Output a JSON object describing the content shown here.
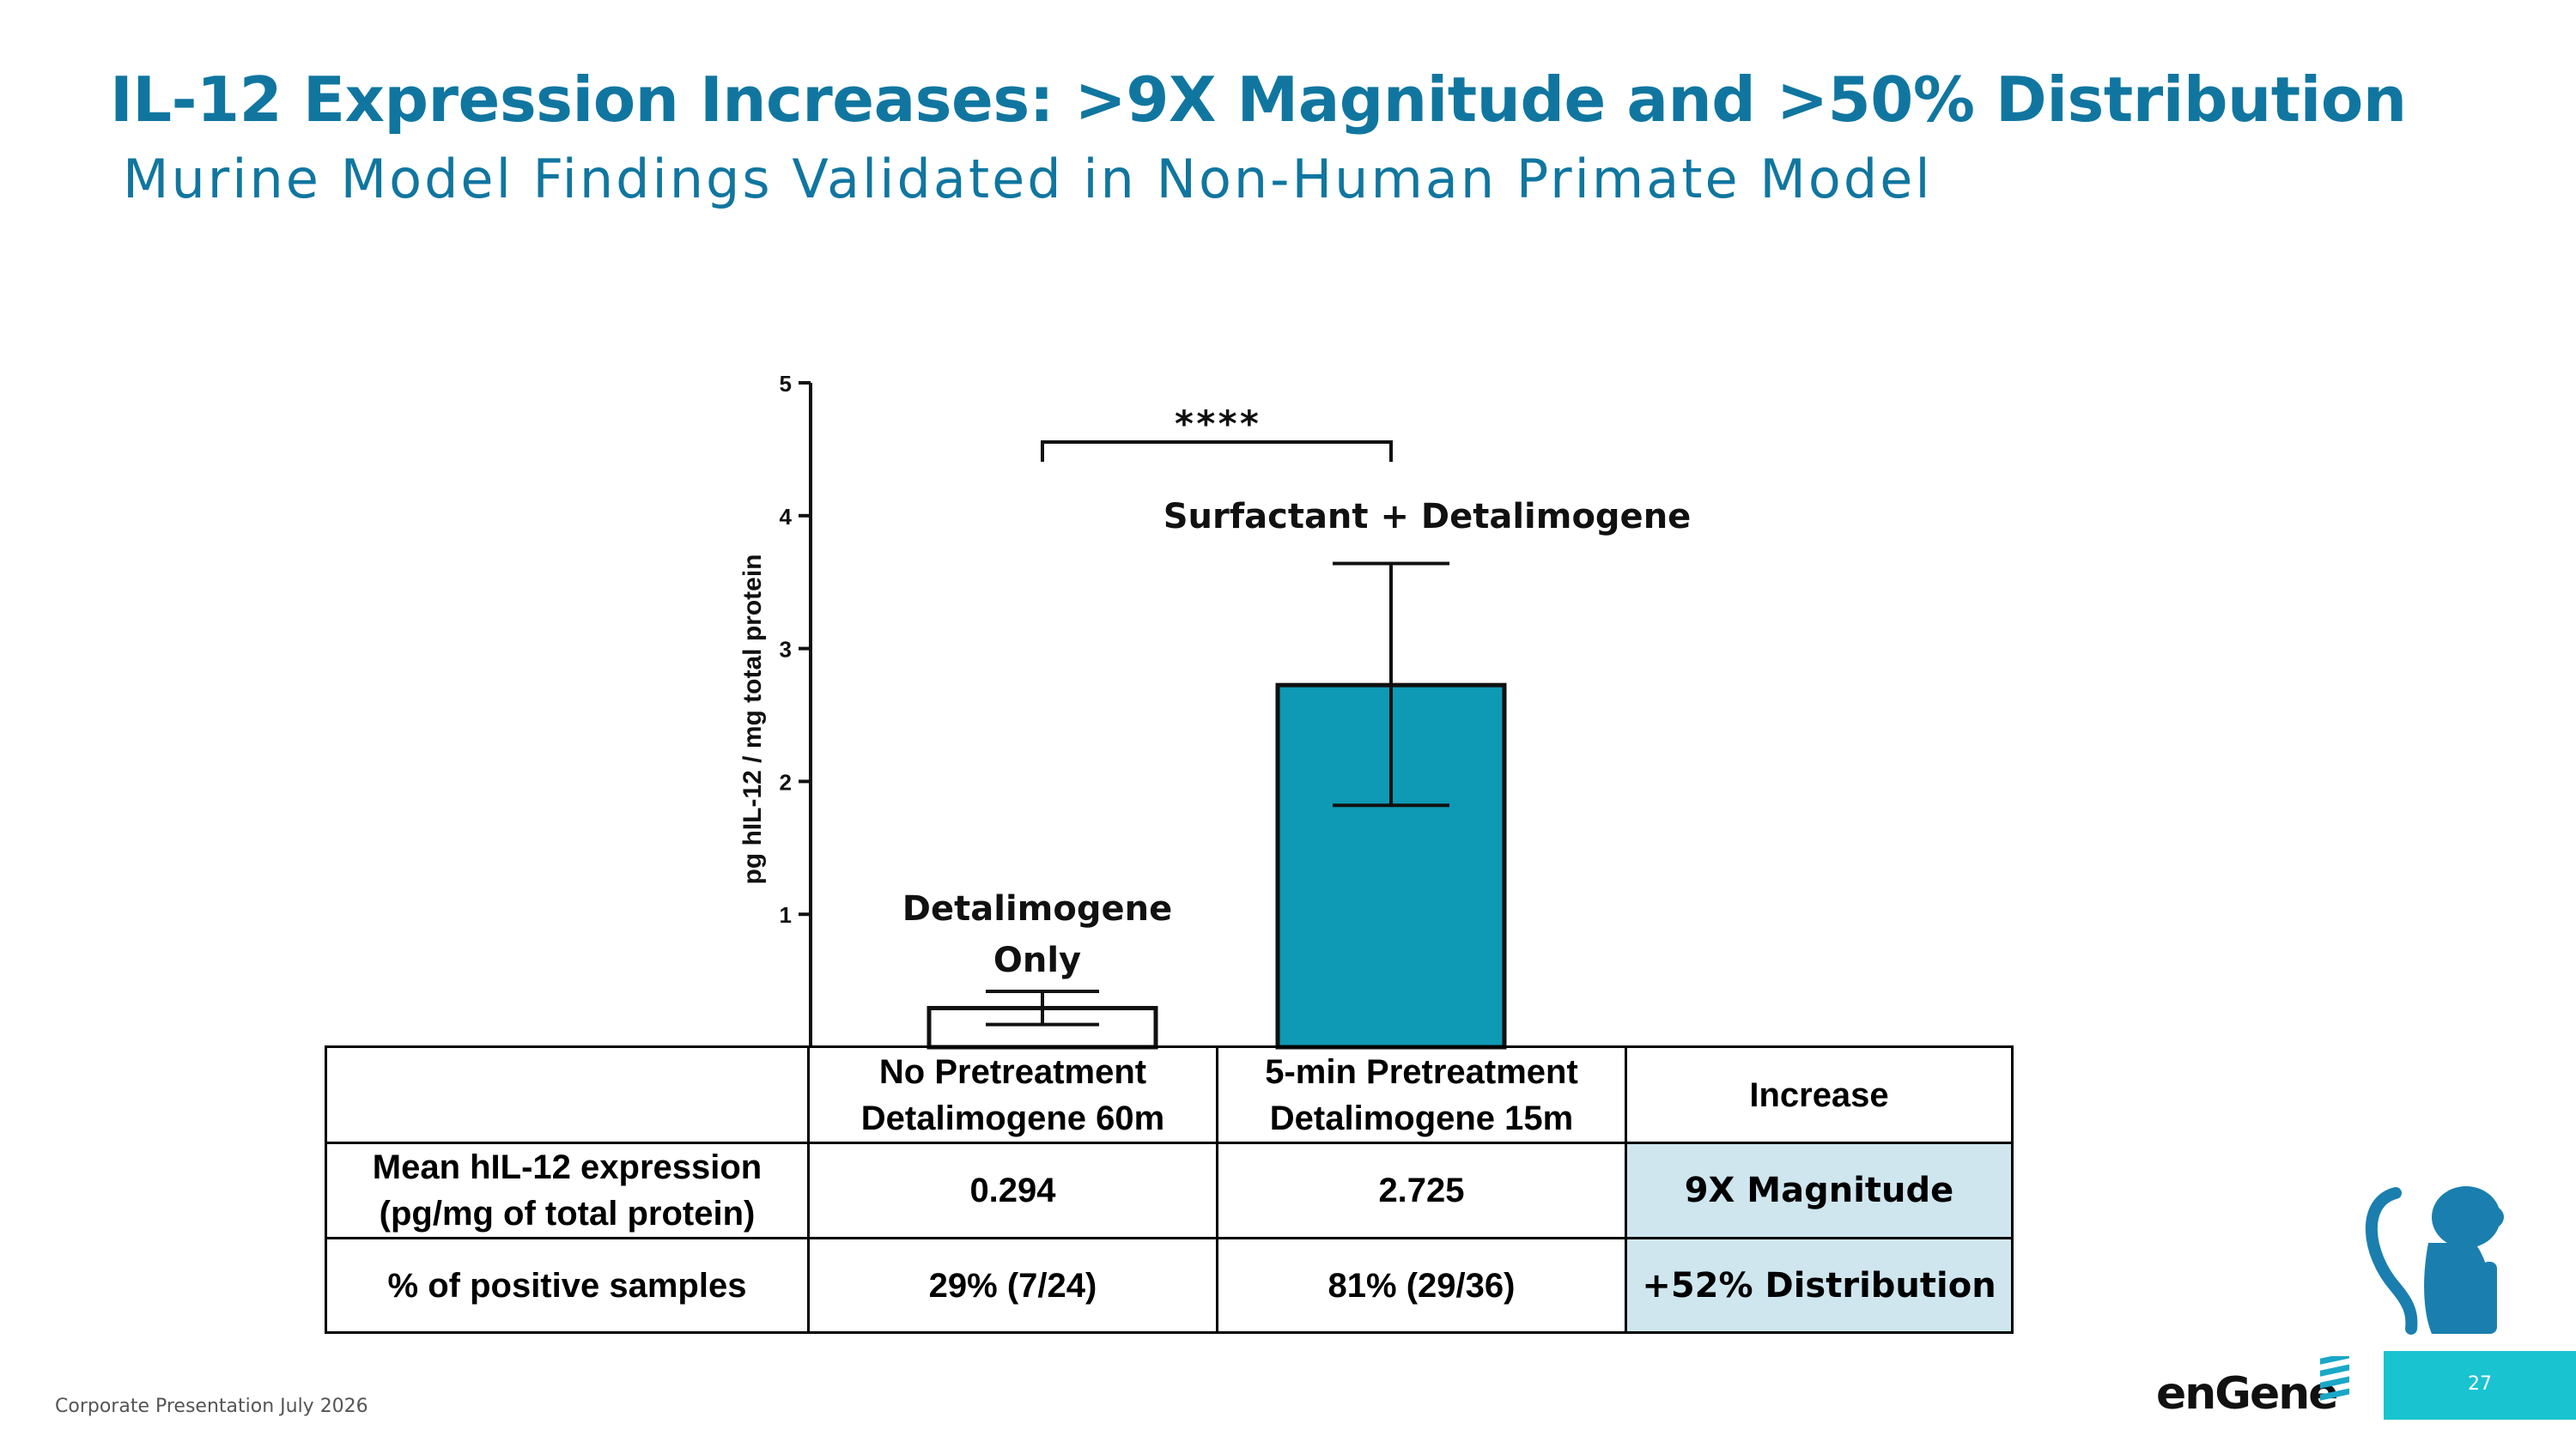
{
  "slide": {
    "title": "IL-12 Expression Increases: >9X Magnitude and >50% Distribution",
    "subtitle": "Murine Model Findings Validated in Non-Human Primate Model",
    "footer": "Corporate Presentation July 2026",
    "page_number": "27",
    "logo_text": "enGene"
  },
  "chart_data": {
    "type": "bar",
    "categories": [
      "No Pretreatment Detalimogene 60m",
      "5-min Pretreatment Detalimogene 15m"
    ],
    "bar_labels": [
      "Detalimogene Only",
      "Surfactant + Detalimogene"
    ],
    "values": [
      0.294,
      2.725
    ],
    "error_low": [
      0.17,
      1.82
    ],
    "error_high": [
      0.42,
      3.64
    ],
    "ylabel": "pg hIL-12 / mg total protein",
    "ylim": [
      0,
      5
    ],
    "yticks": [
      "1",
      "2",
      "3",
      "4",
      "5"
    ],
    "significance": "****",
    "colors": [
      "#ffffff",
      "#0e9ab5"
    ],
    "grid": false
  },
  "table": {
    "header": [
      "",
      "No Pretreatment Detalimogene 60m",
      "5-min Pretreatment Detalimogene 15m",
      "Increase"
    ],
    "rows": [
      [
        "Mean hIL-12 expression (pg/mg of total protein)",
        "0.294",
        "2.725",
        "9X Magnitude"
      ],
      [
        "% of positive samples",
        "29% (7/24)",
        "81% (29/36)",
        "+52% Distribution"
      ]
    ]
  },
  "colors": {
    "accent": "#1076a0",
    "bar": "#0e9ab5",
    "highlight_cell": "#cfe6ee",
    "page_box": "#19c3cf"
  }
}
